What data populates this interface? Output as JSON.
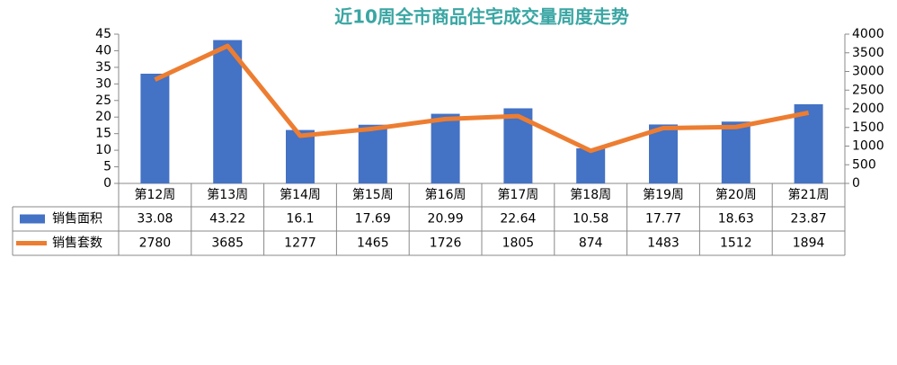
{
  "chart_data": {
    "type": "bar",
    "title": "近10周全市商品住宅成交量周度走势",
    "categories": [
      "第12周",
      "第13周",
      "第14周",
      "第15周",
      "第16周",
      "第17周",
      "第18周",
      "第19周",
      "第20周",
      "第21周"
    ],
    "series": [
      {
        "name": "销售面积",
        "color": "#4472c4",
        "values": [
          33.08,
          43.22,
          16.1,
          17.69,
          20.99,
          22.64,
          10.58,
          17.77,
          18.63,
          23.87
        ]
      },
      {
        "name": "销售套数",
        "color": "#ed7d31",
        "type": "line",
        "axis": "y2",
        "values": [
          2780,
          3685,
          1277,
          1465,
          1726,
          1805,
          874,
          1483,
          1512,
          1894
        ]
      }
    ],
    "ylim": [
      0,
      45
    ],
    "yticks": [
      0,
      5,
      10,
      15,
      20,
      25,
      30,
      35,
      40,
      45
    ],
    "y2lim": [
      0,
      4000
    ],
    "y2ticks": [
      0,
      500,
      1000,
      1500,
      2000,
      2500,
      3000,
      3500,
      4000
    ]
  }
}
